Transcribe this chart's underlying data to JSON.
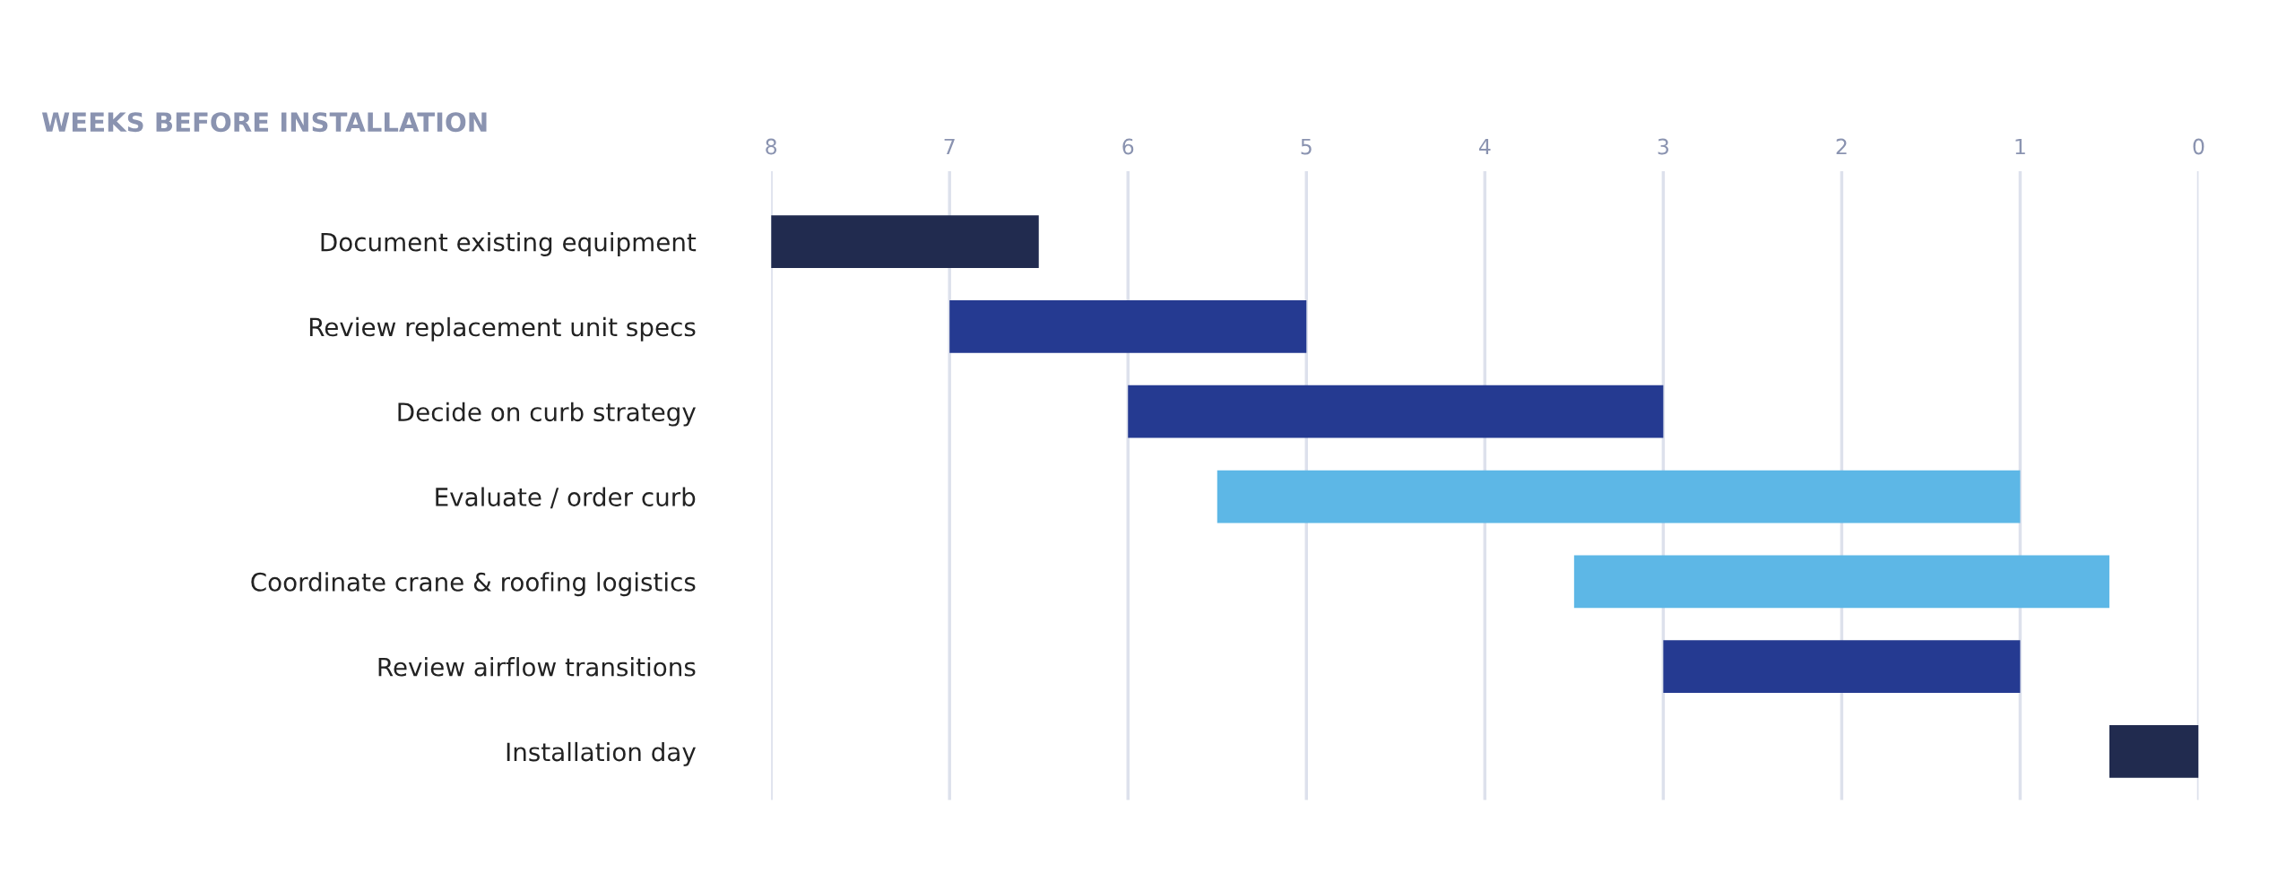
{
  "chart_data": {
    "type": "bar",
    "orientation": "horizontal",
    "title": "WEEKS BEFORE INSTALLATION",
    "categories": [
      "Document existing equipment",
      "Review replacement unit specs",
      "Decide on curb strategy",
      "Evaluate / order curb",
      "Coordinate crane & roofing logistics",
      "Review airflow transitions",
      "Installation day"
    ],
    "base": [
      6.5,
      5,
      3,
      1,
      0.5,
      1,
      0
    ],
    "values": [
      1.5,
      2,
      3,
      4.5,
      3,
      2,
      0.5
    ],
    "colors": [
      "#212b4f",
      "#253a91",
      "#253a91",
      "#5db7e6",
      "#5db7e6",
      "#253a91",
      "#212b4f"
    ],
    "xlim": [
      8,
      0
    ],
    "xticks": [
      8,
      7,
      6,
      5,
      4,
      3,
      2,
      1,
      0
    ],
    "grid": "x"
  }
}
